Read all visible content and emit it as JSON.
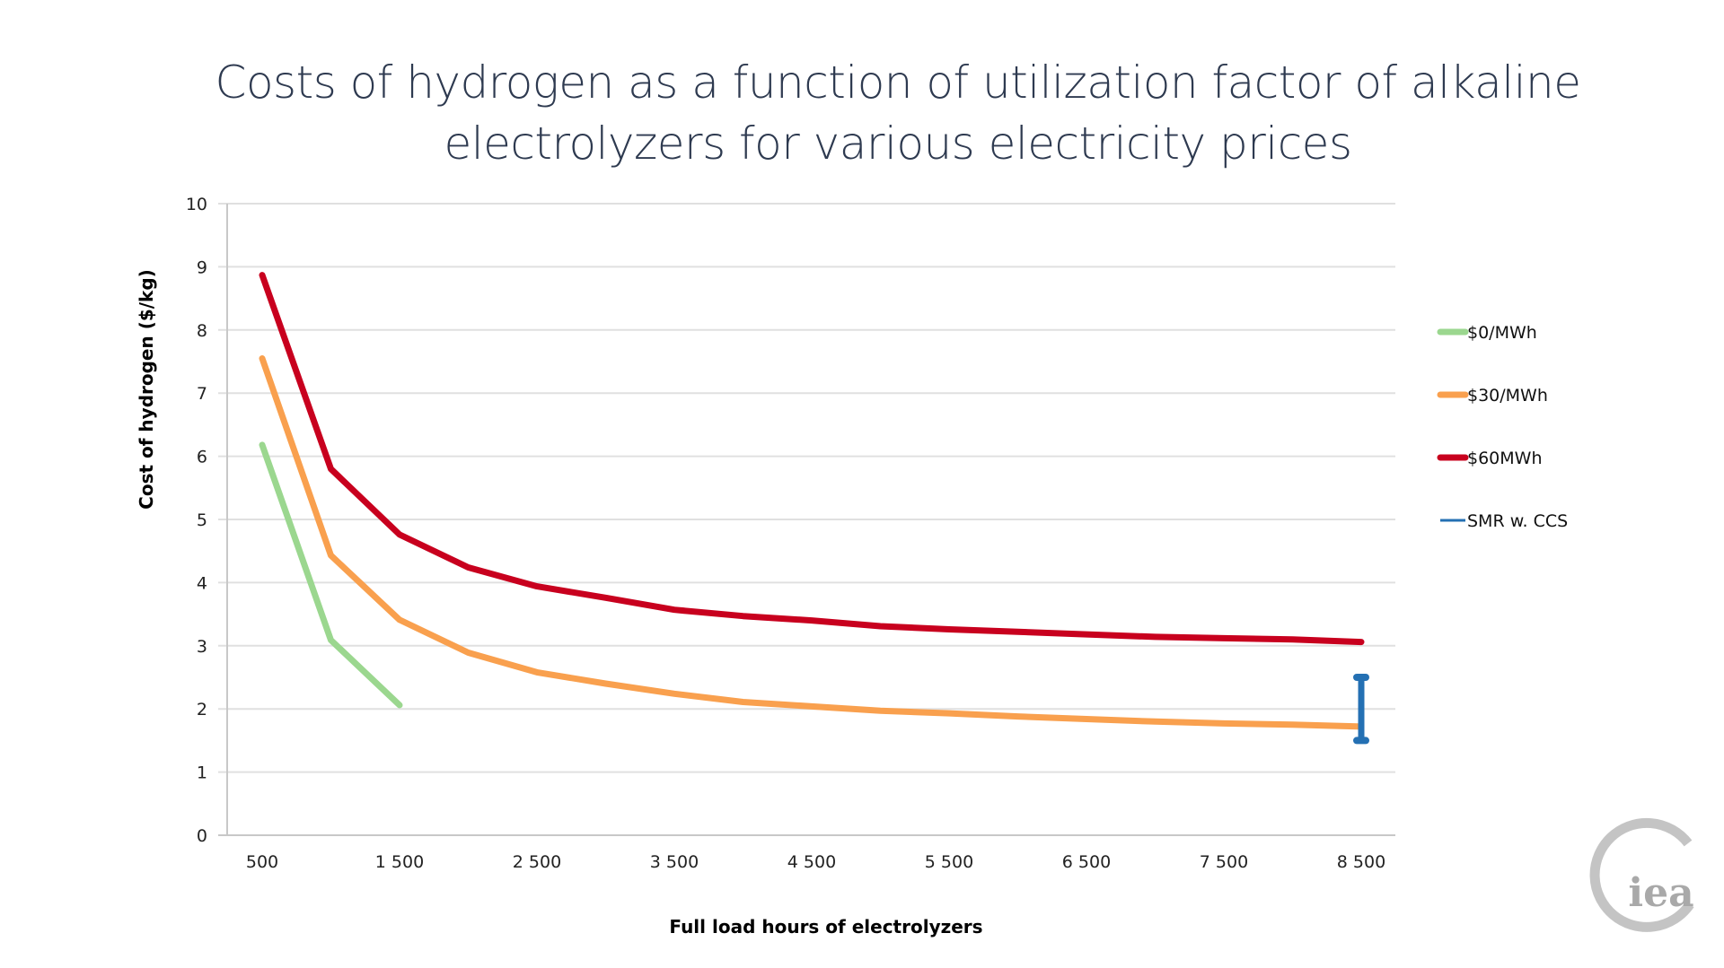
{
  "title_lines": [
    "Costs of hydrogen as a function of utilization factor of alkaline",
    "electrolyzers for various electricity prices"
  ],
  "logo_text": "iea",
  "chart_data": {
    "type": "line",
    "title": "Costs of hydrogen as a function of utilization factor of alkaline electrolyzers for various electricity prices",
    "xlabel": "Full load hours of electrolyzers",
    "ylabel": "Cost of hydrogen ($/kg)",
    "xlim": [
      500,
      8500
    ],
    "ylim": [
      0,
      10
    ],
    "yticks": [
      0,
      1,
      2,
      3,
      4,
      5,
      6,
      7,
      8,
      9,
      10
    ],
    "xticks": [
      500,
      1500,
      2500,
      3500,
      4500,
      5500,
      6500,
      7500,
      8500
    ],
    "xtick_labels": [
      "500",
      "1 500",
      "2 500",
      "3 500",
      "4 500",
      "5 500",
      "6 500",
      "7 500",
      "8 500"
    ],
    "grid": "horizontal",
    "legend_position": "right",
    "series": [
      {
        "name": "$0/MWh",
        "color": "#9bd78f",
        "x": [
          500,
          1000,
          1500
        ],
        "values": [
          6.18,
          3.09,
          2.06
        ]
      },
      {
        "name": "$30/MWh",
        "color": "#f9a04e",
        "x": [
          500,
          1000,
          1500,
          2000,
          2500,
          3000,
          3500,
          4000,
          4500,
          5000,
          5500,
          6000,
          6500,
          7000,
          7500,
          8000,
          8500
        ],
        "values": [
          7.55,
          4.43,
          3.41,
          2.89,
          2.58,
          2.4,
          2.24,
          2.11,
          2.04,
          1.97,
          1.93,
          1.88,
          1.84,
          1.8,
          1.77,
          1.75,
          1.72
        ]
      },
      {
        "name": "$60MWh",
        "color": "#c8001e",
        "x": [
          500,
          1000,
          1500,
          2000,
          2500,
          3000,
          3500,
          4000,
          4500,
          5000,
          5500,
          6000,
          6500,
          7000,
          7500,
          8000,
          8500
        ],
        "values": [
          8.87,
          5.8,
          4.76,
          4.24,
          3.94,
          3.76,
          3.57,
          3.47,
          3.4,
          3.31,
          3.26,
          3.22,
          3.18,
          3.14,
          3.12,
          3.1,
          3.06
        ]
      },
      {
        "name": "SMR w. CCS",
        "color": "#2470b3",
        "kind": "range",
        "x": 8500,
        "low": 1.5,
        "high": 2.5
      }
    ]
  }
}
